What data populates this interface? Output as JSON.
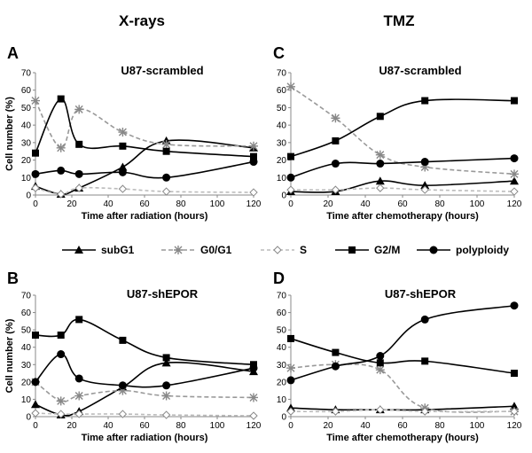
{
  "column_headers": [
    "X-rays",
    "TMZ"
  ],
  "legend": [
    {
      "name": "subG1",
      "marker": "triangle",
      "dash": false
    },
    {
      "name": "G0/G1",
      "marker": "star",
      "dash": true
    },
    {
      "name": "S",
      "marker": "diamond",
      "dash": true
    },
    {
      "name": "G2/M",
      "marker": "square",
      "dash": false
    },
    {
      "name": "polyploidy",
      "marker": "circle",
      "dash": false
    }
  ],
  "chart_data": [
    {
      "type": "line",
      "panel": "A",
      "title": "U87-scrambled",
      "xlabel": "Time after radiation (hours)",
      "ylabel": "Cell number (%)",
      "xlim": [
        0,
        120
      ],
      "ylim": [
        0,
        70
      ],
      "xticks": [
        0,
        20,
        40,
        60,
        80,
        100,
        120
      ],
      "yticks": [
        0,
        10,
        20,
        30,
        40,
        50,
        60,
        70
      ],
      "series": [
        {
          "name": "subG1",
          "x": [
            0,
            14,
            24,
            48,
            72,
            120
          ],
          "values": [
            5,
            0.5,
            4,
            16,
            31,
            27
          ]
        },
        {
          "name": "G0/G1",
          "x": [
            0,
            14,
            24,
            48,
            72,
            120
          ],
          "values": [
            54,
            27,
            49,
            36,
            29,
            28
          ]
        },
        {
          "name": "S",
          "x": [
            0,
            14,
            24,
            48,
            72,
            120
          ],
          "values": [
            4,
            0.5,
            4,
            3.5,
            2,
            1.5
          ]
        },
        {
          "name": "G2/M",
          "x": [
            0,
            14,
            24,
            48,
            72,
            120
          ],
          "values": [
            24,
            55,
            29,
            28,
            25,
            22
          ]
        },
        {
          "name": "polyploidy",
          "x": [
            0,
            14,
            24,
            48,
            72,
            120
          ],
          "values": [
            12,
            14,
            12,
            13,
            10,
            19
          ]
        }
      ]
    },
    {
      "type": "line",
      "panel": "C",
      "title": "U87-scrambled",
      "xlabel": "Time after chemotherapy (hours)",
      "ylabel": "",
      "xlim": [
        0,
        120
      ],
      "ylim": [
        0,
        70
      ],
      "xticks": [
        0,
        20,
        40,
        60,
        80,
        100,
        120
      ],
      "yticks": [
        0,
        10,
        20,
        30,
        40,
        50,
        60,
        70
      ],
      "series": [
        {
          "name": "subG1",
          "x": [
            0,
            24,
            48,
            72,
            120
          ],
          "values": [
            2,
            2,
            8,
            5.5,
            8
          ]
        },
        {
          "name": "G0/G1",
          "x": [
            0,
            24,
            48,
            72,
            120
          ],
          "values": [
            62,
            44,
            23,
            16,
            12
          ]
        },
        {
          "name": "S",
          "x": [
            0,
            24,
            48,
            72,
            120
          ],
          "values": [
            3,
            3,
            4,
            3,
            2
          ]
        },
        {
          "name": "G2/M",
          "x": [
            0,
            24,
            48,
            72,
            120
          ],
          "values": [
            22,
            31,
            45,
            54,
            54
          ]
        },
        {
          "name": "polyploidy",
          "x": [
            0,
            24,
            48,
            72,
            120
          ],
          "values": [
            10,
            18,
            18,
            19,
            21
          ]
        }
      ]
    },
    {
      "type": "line",
      "panel": "B",
      "title": "U87-shEPOR",
      "xlabel": "Time after radiation (hours)",
      "ylabel": "Cell number (%)",
      "xlim": [
        0,
        120
      ],
      "ylim": [
        0,
        70
      ],
      "xticks": [
        0,
        20,
        40,
        60,
        80,
        100,
        120
      ],
      "yticks": [
        0,
        10,
        20,
        30,
        40,
        50,
        60,
        70
      ],
      "series": [
        {
          "name": "subG1",
          "x": [
            0,
            14,
            24,
            48,
            72,
            120
          ],
          "values": [
            7,
            1,
            3,
            17,
            31,
            26
          ]
        },
        {
          "name": "G0/G1",
          "x": [
            0,
            14,
            24,
            48,
            72,
            120
          ],
          "values": [
            20,
            9,
            12,
            15,
            12,
            11
          ]
        },
        {
          "name": "S",
          "x": [
            0,
            14,
            24,
            48,
            72,
            120
          ],
          "values": [
            2,
            1.5,
            1.5,
            1.5,
            1,
            0.5
          ]
        },
        {
          "name": "G2/M",
          "x": [
            0,
            14,
            24,
            48,
            72,
            120
          ],
          "values": [
            47,
            47,
            56,
            44,
            34,
            30
          ]
        },
        {
          "name": "polyploidy",
          "x": [
            0,
            14,
            24,
            48,
            72,
            120
          ],
          "values": [
            20,
            36,
            22,
            18,
            18,
            28
          ]
        }
      ]
    },
    {
      "type": "line",
      "panel": "D",
      "title": "U87-shEPOR",
      "xlabel": "Time after chemotherapy (hours)",
      "ylabel": "",
      "xlim": [
        0,
        120
      ],
      "ylim": [
        0,
        70
      ],
      "xticks": [
        0,
        20,
        40,
        60,
        80,
        100,
        120
      ],
      "yticks": [
        0,
        10,
        20,
        30,
        40,
        50,
        60,
        70
      ],
      "series": [
        {
          "name": "subG1",
          "x": [
            0,
            24,
            48,
            72,
            120
          ],
          "values": [
            5,
            4,
            4,
            4,
            6
          ]
        },
        {
          "name": "G0/G1",
          "x": [
            0,
            24,
            48,
            72,
            120
          ],
          "values": [
            28,
            30,
            27,
            5,
            3
          ]
        },
        {
          "name": "S",
          "x": [
            0,
            24,
            48,
            72,
            120
          ],
          "values": [
            3,
            3,
            4,
            3,
            3
          ]
        },
        {
          "name": "G2/M",
          "x": [
            0,
            24,
            48,
            72,
            120
          ],
          "values": [
            45,
            37,
            31,
            32,
            25
          ]
        },
        {
          "name": "polyploidy",
          "x": [
            0,
            24,
            48,
            72,
            120
          ],
          "values": [
            21,
            29,
            35,
            56,
            64
          ]
        }
      ]
    }
  ]
}
